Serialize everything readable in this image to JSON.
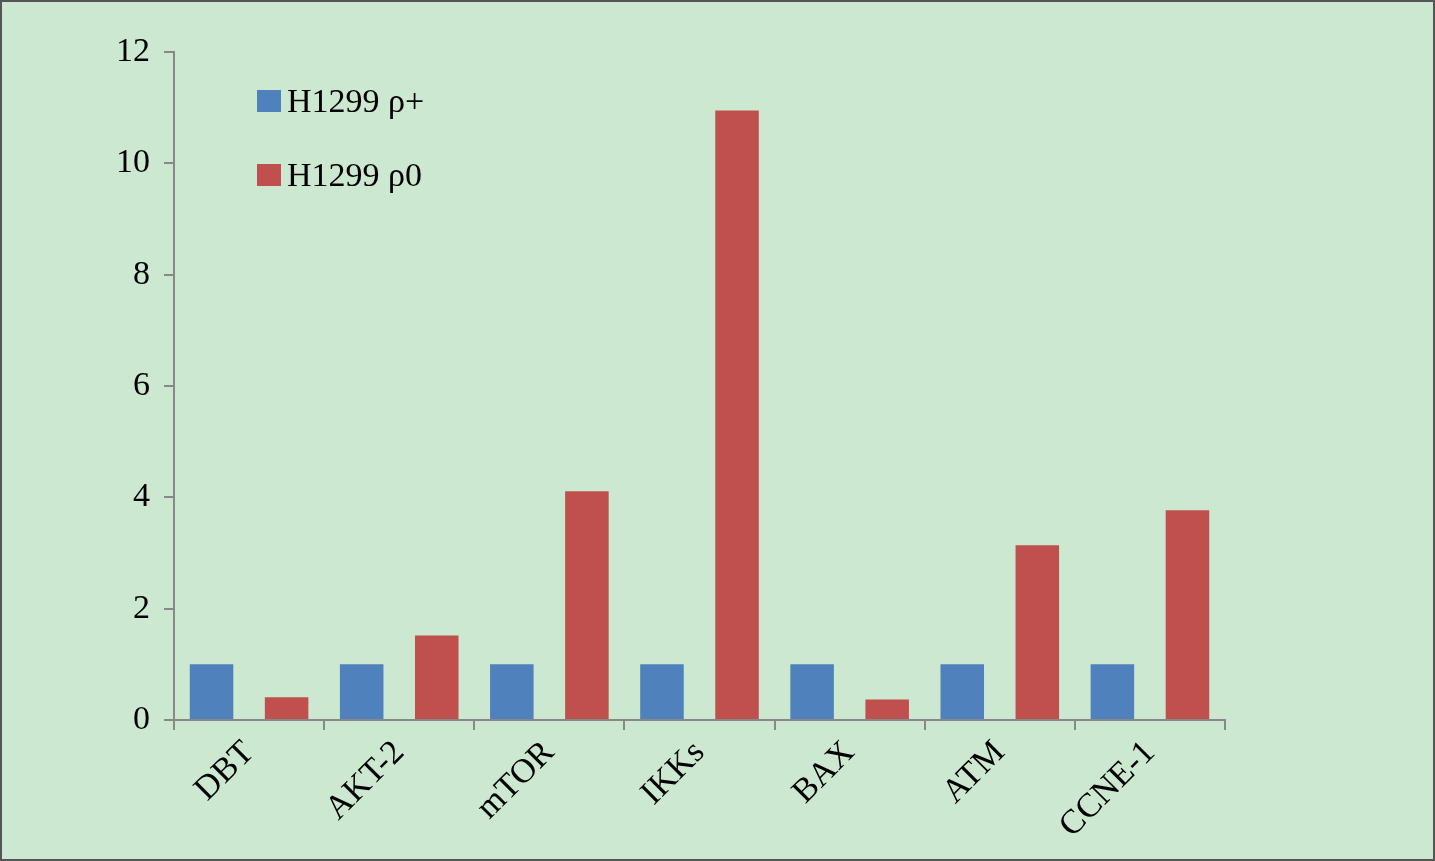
{
  "chart_data": {
    "type": "bar",
    "categories": [
      "DBT",
      "AKT-2",
      "mTOR",
      "IKKs",
      "BAX",
      "ATM",
      "CCNE-1"
    ],
    "series": [
      {
        "name": "H1299 ρ+",
        "color": "#4f81bd",
        "values": [
          1,
          1,
          1,
          1,
          1,
          1,
          1
        ]
      },
      {
        "name": "H1299 ρ0",
        "color": "#c0504d",
        "values": [
          0.41,
          1.52,
          4.11,
          10.95,
          0.37,
          3.14,
          3.77
        ]
      }
    ],
    "ylim": [
      0,
      12
    ],
    "yticks": [
      0,
      2,
      4,
      6,
      8,
      10,
      12
    ],
    "grid": false,
    "legend": "top left"
  }
}
